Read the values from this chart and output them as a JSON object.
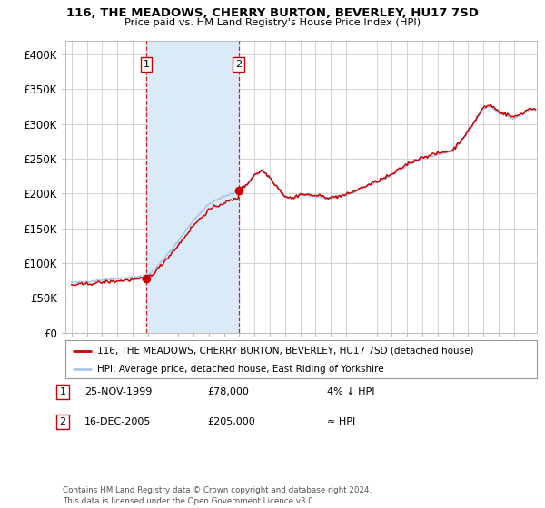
{
  "title": "116, THE MEADOWS, CHERRY BURTON, BEVERLEY, HU17 7SD",
  "subtitle": "Price paid vs. HM Land Registry's House Price Index (HPI)",
  "legend_line1": "116, THE MEADOWS, CHERRY BURTON, BEVERLEY, HU17 7SD (detached house)",
  "legend_line2": "HPI: Average price, detached house, East Riding of Yorkshire",
  "table_rows": [
    {
      "num": "1",
      "date": "25-NOV-1999",
      "price": "£78,000",
      "hpi": "4% ↓ HPI"
    },
    {
      "num": "2",
      "date": "16-DEC-2005",
      "price": "£205,000",
      "hpi": "≈ HPI"
    }
  ],
  "footnote": "Contains HM Land Registry data © Crown copyright and database right 2024.\nThis data is licensed under the Open Government Licence v3.0.",
  "sale1_year": 1999.9,
  "sale1_price": 78000,
  "sale2_year": 2005.96,
  "sale2_price": 205000,
  "shaded_x1": 1999.9,
  "shaded_x2": 2005.96,
  "vline1_x": 1999.9,
  "vline2_x": 2005.96,
  "hpi_color": "#aac8e8",
  "price_color": "#cc0000",
  "dot_color": "#cc0000",
  "vline_color": "#cc0000",
  "shade_color": "#daeaf7",
  "grid_color": "#cccccc",
  "background_color": "#ffffff",
  "ylim": [
    0,
    420000
  ],
  "yticks": [
    0,
    50000,
    100000,
    150000,
    200000,
    250000,
    300000,
    350000,
    400000
  ],
  "ytick_labels": [
    "£0",
    "£50K",
    "£100K",
    "£150K",
    "£200K",
    "£250K",
    "£300K",
    "£350K",
    "£400K"
  ],
  "xlim_start": 1994.6,
  "xlim_end": 2025.5
}
